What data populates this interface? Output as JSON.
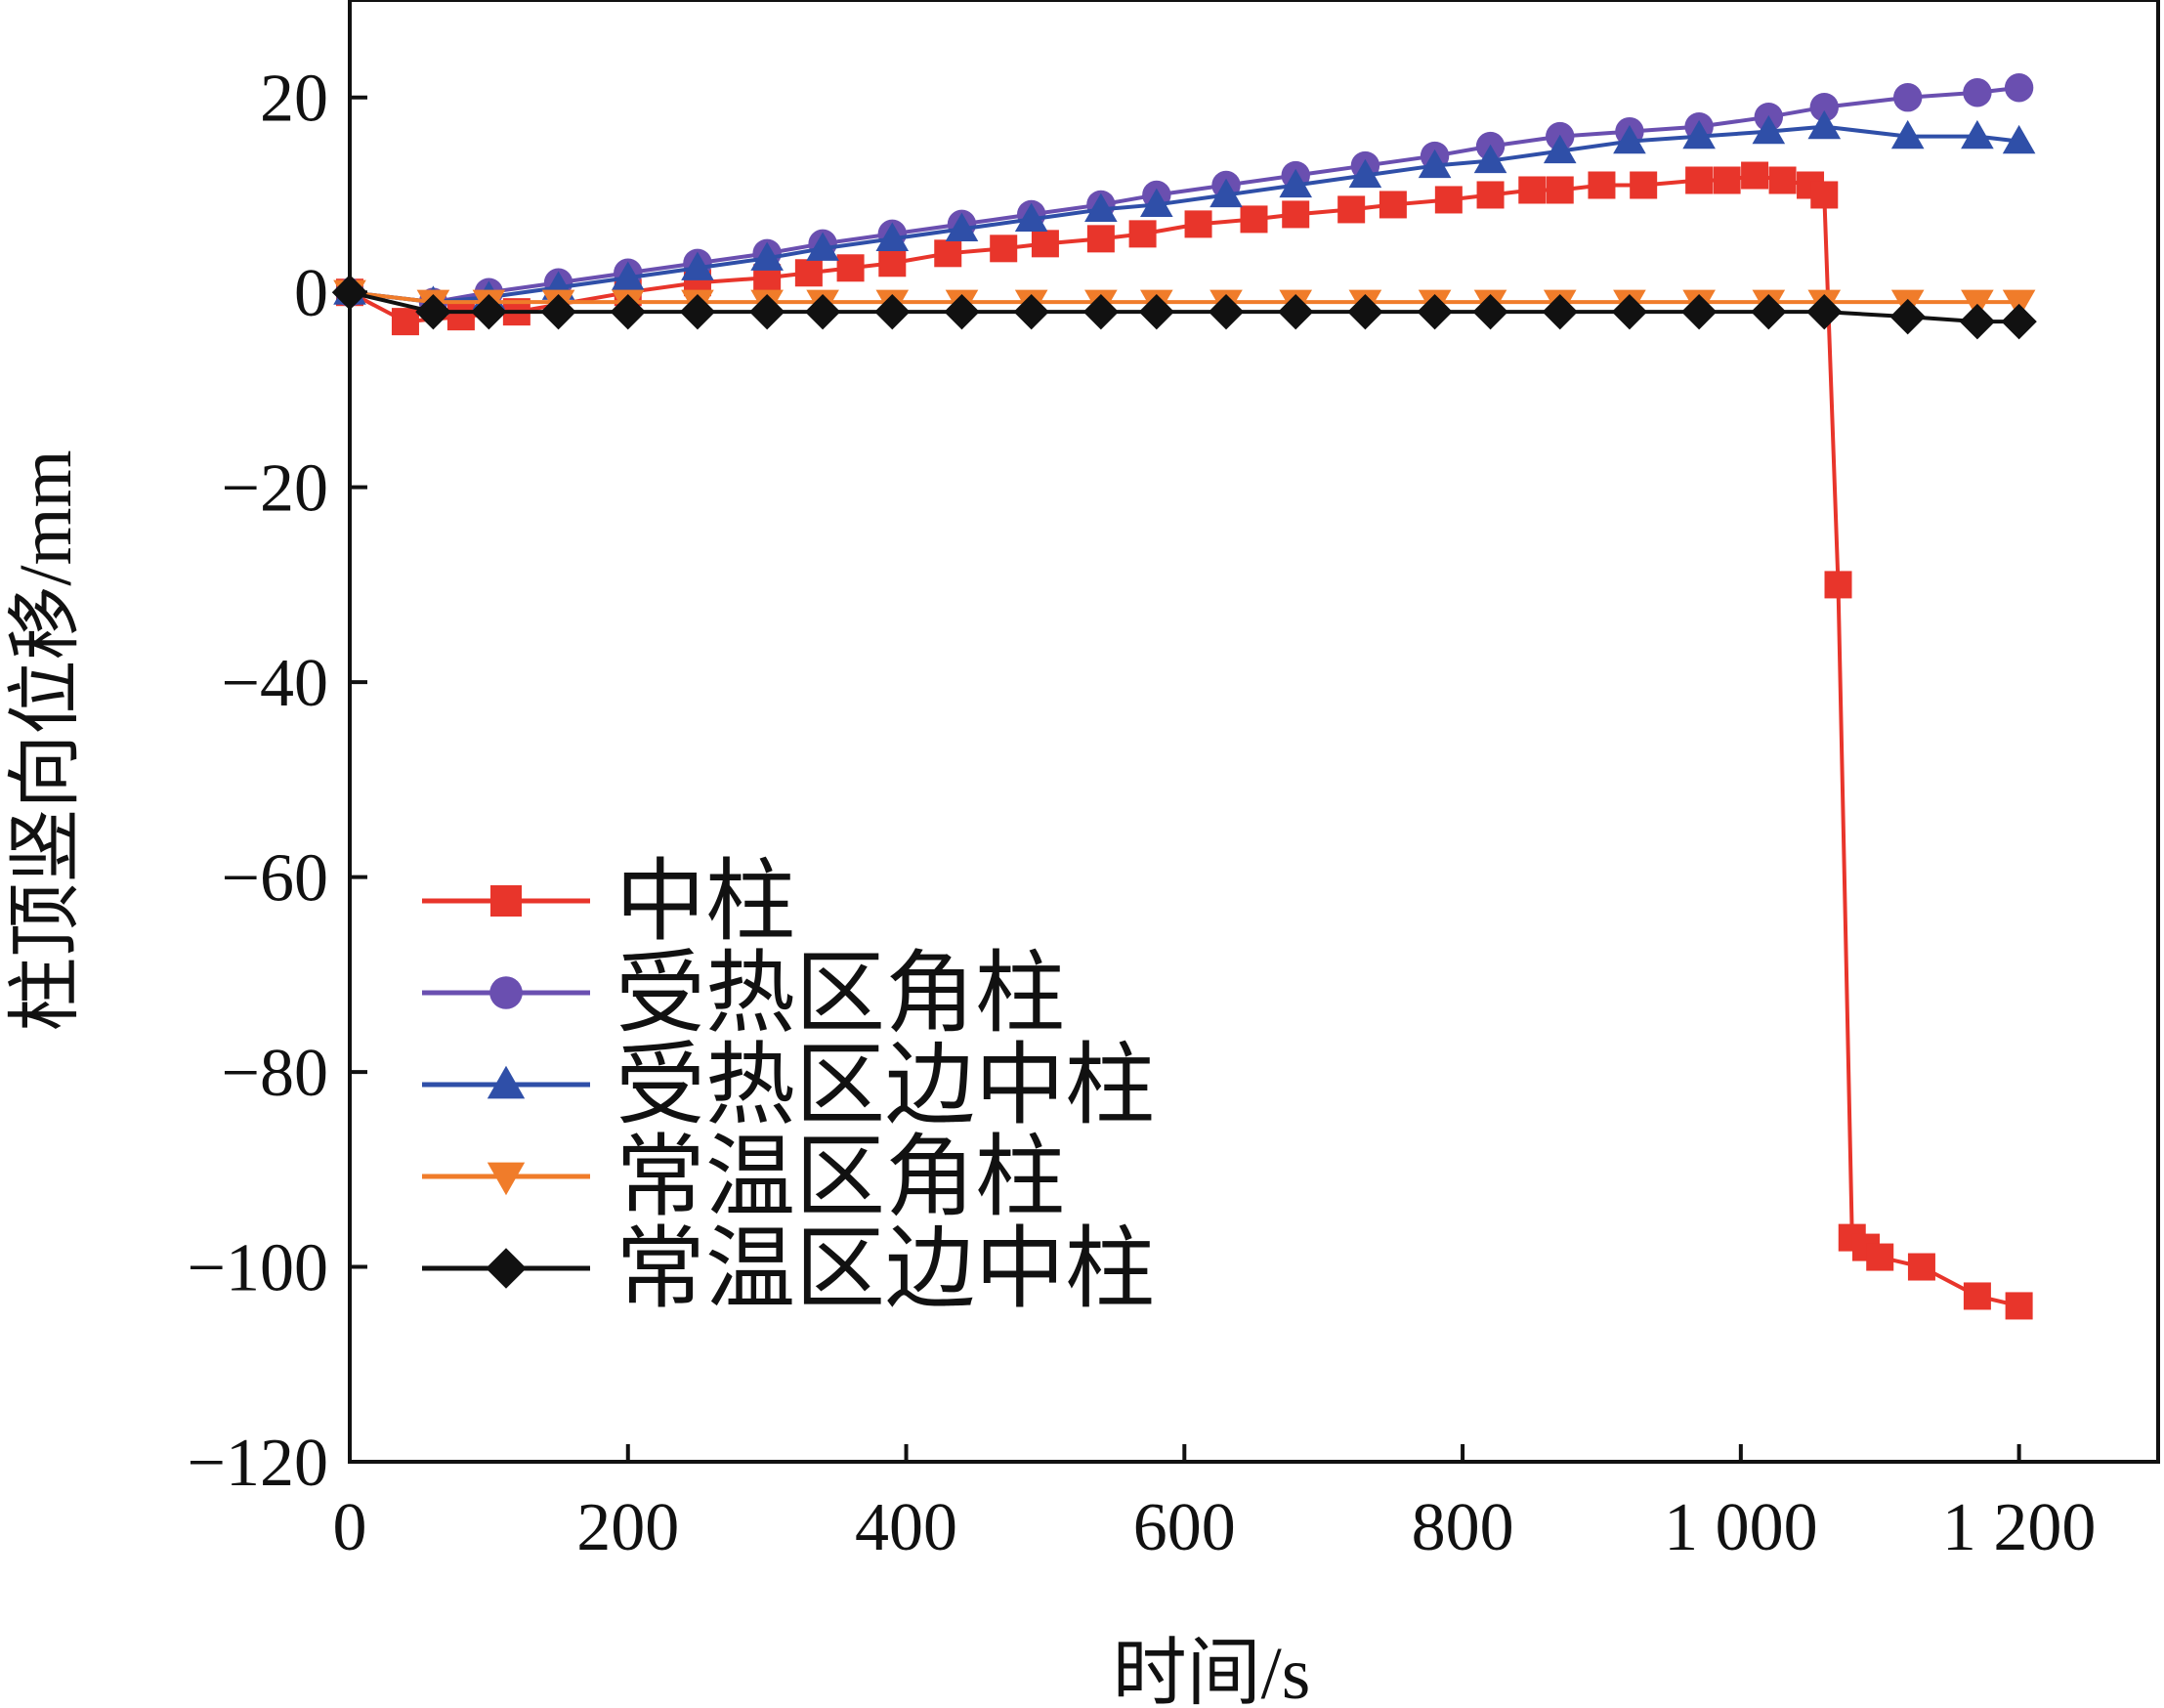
{
  "chart_data": {
    "type": "line",
    "xlabel": "时间/s",
    "ylabel": "柱顶竖向位移/mm",
    "xlim": [
      0,
      1300
    ],
    "ylim": [
      -120,
      30
    ],
    "xticks": [
      0,
      200,
      400,
      600,
      800,
      1000,
      1200
    ],
    "xtick_labels": [
      "0",
      "200",
      "400",
      "600",
      "800",
      "1 000",
      "1 200"
    ],
    "yticks": [
      20,
      0,
      -20,
      -40,
      -60,
      -80,
      -100,
      -120
    ],
    "ytick_labels": [
      "20",
      "0",
      "−20",
      "−40",
      "−60",
      "−80",
      "−100",
      "−120"
    ],
    "grid": false,
    "legend_position": "lower-left",
    "series": [
      {
        "name": "中柱",
        "color": "#e8352b",
        "marker": "square",
        "x": [
          0,
          40,
          80,
          120,
          200,
          250,
          300,
          330,
          360,
          390,
          430,
          470,
          500,
          540,
          570,
          610,
          650,
          680,
          720,
          750,
          790,
          820,
          850,
          870,
          900,
          930,
          970,
          990,
          1010,
          1030,
          1050,
          1060,
          1070,
          1080,
          1090,
          1100,
          1130,
          1170,
          1200
        ],
        "y": [
          0,
          -3,
          -2.5,
          -2,
          0,
          1,
          1.5,
          2,
          2.5,
          3,
          4,
          4.5,
          5,
          5.5,
          6,
          7,
          7.5,
          8,
          8.5,
          9,
          9.5,
          10,
          10.5,
          10.5,
          11,
          11,
          11.5,
          11.5,
          12,
          11.5,
          11,
          10,
          -30,
          -97,
          -98,
          -99,
          -100,
          -103,
          -104
        ]
      },
      {
        "name": "受热区角柱",
        "color": "#6a4fb0",
        "marker": "circle",
        "x": [
          0,
          60,
          100,
          150,
          200,
          250,
          300,
          340,
          390,
          440,
          490,
          540,
          580,
          630,
          680,
          730,
          780,
          820,
          870,
          920,
          970,
          1020,
          1060,
          1120,
          1170,
          1200
        ],
        "y": [
          0,
          -1,
          0,
          1,
          2,
          3,
          4,
          5,
          6,
          7,
          8,
          9,
          10,
          11,
          12,
          13,
          14,
          15,
          16,
          16.5,
          17,
          18,
          19,
          20,
          20.5,
          21
        ]
      },
      {
        "name": "受热区边中柱",
        "color": "#2f4fa8",
        "marker": "triangle-up",
        "x": [
          0,
          60,
          100,
          150,
          200,
          250,
          300,
          340,
          390,
          440,
          490,
          540,
          580,
          630,
          680,
          730,
          780,
          820,
          870,
          920,
          970,
          1020,
          1060,
          1120,
          1170,
          1200
        ],
        "y": [
          0,
          -1,
          -0.5,
          0.5,
          1.5,
          2.5,
          3.5,
          4.5,
          5.5,
          6.5,
          7.5,
          8.5,
          9,
          10,
          11,
          12,
          13,
          13.5,
          14.5,
          15.5,
          16,
          16.5,
          17,
          16,
          16,
          15.5
        ]
      },
      {
        "name": "常温区角柱",
        "color": "#f07c2a",
        "marker": "triangle-down",
        "x": [
          0,
          60,
          100,
          150,
          200,
          250,
          300,
          340,
          390,
          440,
          490,
          540,
          580,
          630,
          680,
          730,
          780,
          820,
          870,
          920,
          970,
          1020,
          1060,
          1120,
          1170,
          1200
        ],
        "y": [
          0,
          -1,
          -1,
          -1,
          -1,
          -1,
          -1,
          -1,
          -1,
          -1,
          -1,
          -1,
          -1,
          -1,
          -1,
          -1,
          -1,
          -1,
          -1,
          -1,
          -1,
          -1,
          -1,
          -1,
          -1,
          -1
        ]
      },
      {
        "name": "常温区边中柱",
        "color": "#111111",
        "marker": "diamond",
        "x": [
          0,
          60,
          100,
          150,
          200,
          250,
          300,
          340,
          390,
          440,
          490,
          540,
          580,
          630,
          680,
          730,
          780,
          820,
          870,
          920,
          970,
          1020,
          1060,
          1120,
          1170,
          1200
        ],
        "y": [
          0,
          -2,
          -2,
          -2,
          -2,
          -2,
          -2,
          -2,
          -2,
          -2,
          -2,
          -2,
          -2,
          -2,
          -2,
          -2,
          -2,
          -2,
          -2,
          -2,
          -2,
          -2,
          -2,
          -2.5,
          -3,
          -3
        ]
      }
    ]
  }
}
